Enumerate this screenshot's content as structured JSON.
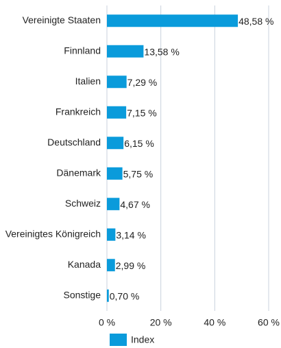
{
  "chart_data": {
    "type": "bar",
    "orientation": "horizontal",
    "categories": [
      "Vereinigte Staaten",
      "Finnland",
      "Italien",
      "Frankreich",
      "Deutschland",
      "Dänemark",
      "Schweiz",
      "Vereinigtes Königreich",
      "Kanada",
      "Sonstige"
    ],
    "series": [
      {
        "name": "Index",
        "color": "#0a9bdb",
        "values": [
          48.58,
          13.58,
          7.29,
          7.15,
          6.15,
          5.75,
          4.67,
          3.14,
          2.99,
          0.7
        ],
        "value_labels": [
          "48,58 %",
          "13,58 %",
          "7,29 %",
          "7,15 %",
          "6,15 %",
          "5,75 %",
          "4,67 %",
          "3,14 %",
          "2,99 %",
          "0,70 %"
        ]
      }
    ],
    "xlim": [
      0,
      60
    ],
    "xticks": [
      {
        "value": 0,
        "label": "0 %"
      },
      {
        "value": 20,
        "label": "20 %"
      },
      {
        "value": 40,
        "label": "40 %"
      },
      {
        "value": 60,
        "label": "60 %"
      }
    ],
    "grid": true,
    "legend": "bottom"
  }
}
